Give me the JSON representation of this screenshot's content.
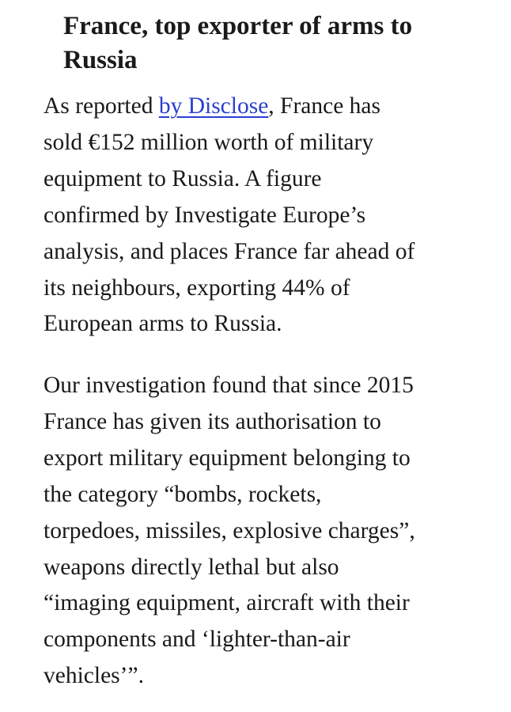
{
  "article": {
    "heading_lines": [
      "France, top exporter of arms to",
      "Russia"
    ],
    "paragraph_1": {
      "line_1_before_link": "As reported ",
      "link_text": "by Disclose",
      "line_1_after_link": ", France has",
      "lines": [
        "sold €152 million worth of military",
        "equipment to Russia. A figure",
        "confirmed by Investigate Europe’s",
        "analysis, and places France far ahead of",
        "its neighbours, exporting 44% of",
        "European arms to Russia."
      ]
    },
    "paragraph_2": {
      "lines": [
        "Our investigation found that since 2015",
        "France has given its authorisation to",
        "export military equipment belonging to",
        "the category  “bombs, rockets,",
        "torpedoes, missiles, explosive charges”,",
        "weapons directly lethal but also",
        "“imaging equipment, aircraft with their",
        "components and ‘lighter-than-air",
        "vehicles’”."
      ]
    }
  },
  "colors": {
    "text": "#1a1a1a",
    "link": "#2a3fd0",
    "background": "#ffffff"
  }
}
